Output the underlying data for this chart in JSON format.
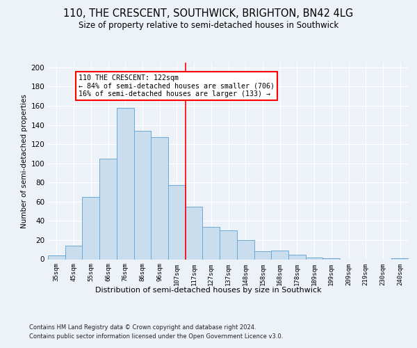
{
  "title1": "110, THE CRESCENT, SOUTHWICK, BRIGHTON, BN42 4LG",
  "title2": "Size of property relative to semi-detached houses in Southwick",
  "xlabel": "Distribution of semi-detached houses by size in Southwick",
  "ylabel": "Number of semi-detached properties",
  "bar_labels": [
    "35sqm",
    "45sqm",
    "55sqm",
    "66sqm",
    "76sqm",
    "86sqm",
    "96sqm",
    "107sqm",
    "117sqm",
    "127sqm",
    "137sqm",
    "148sqm",
    "158sqm",
    "168sqm",
    "178sqm",
    "189sqm",
    "199sqm",
    "209sqm",
    "219sqm",
    "230sqm",
    "240sqm"
  ],
  "bar_values": [
    4,
    14,
    65,
    105,
    158,
    134,
    127,
    77,
    55,
    34,
    30,
    20,
    8,
    9,
    5,
    2,
    1,
    0,
    0,
    0,
    1
  ],
  "bar_color": "#c9ddef",
  "bar_edge_color": "#6aaad4",
  "annotation_title": "110 THE CRESCENT: 122sqm",
  "annotation_line1": "← 84% of semi-detached houses are smaller (706)",
  "annotation_line2": "16% of semi-detached houses are larger (133) →",
  "vline_index": 8,
  "footer1": "Contains HM Land Registry data © Crown copyright and database right 2024.",
  "footer2": "Contains public sector information licensed under the Open Government Licence v3.0.",
  "bg_color": "#edf1f8",
  "plot_bg_color": "#edf1f8",
  "grid_color": "#ffffff",
  "ylim": [
    0,
    205
  ],
  "yticks": [
    0,
    20,
    40,
    60,
    80,
    100,
    120,
    140,
    160,
    180,
    200
  ]
}
